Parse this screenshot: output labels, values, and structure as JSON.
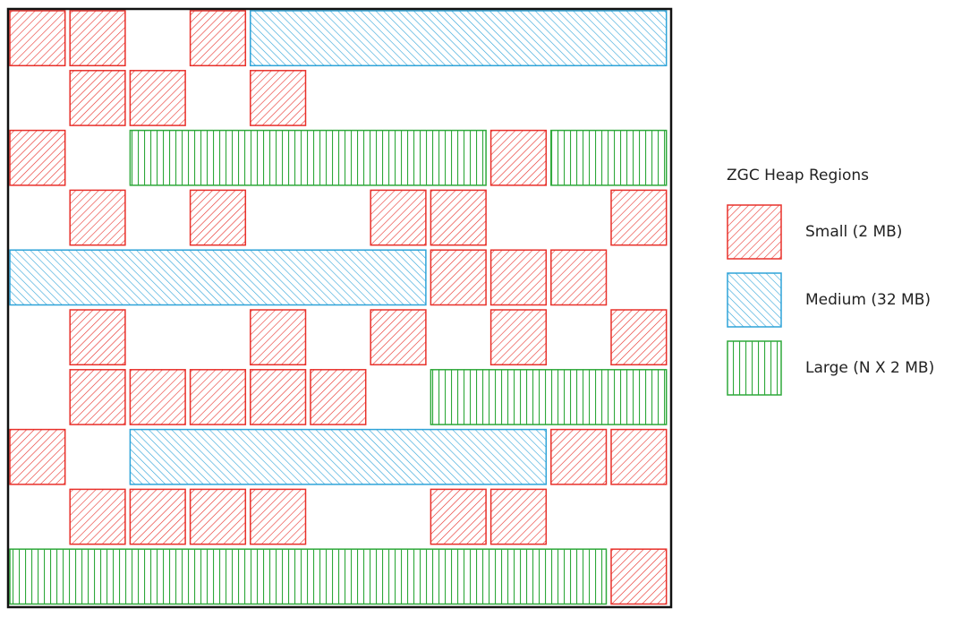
{
  "legend": {
    "title": "ZGC Heap Regions",
    "items": [
      {
        "key": "small",
        "label": "Small (2 MB)",
        "color": "#e8302a",
        "pattern": "hatch-forward"
      },
      {
        "key": "medium",
        "label": "Medium (32 MB)",
        "color": "#2ea3d8",
        "pattern": "hatch-backward"
      },
      {
        "key": "large",
        "label": "Large (N X 2 MB)",
        "color": "#2ea83a",
        "pattern": "vertical-lines"
      }
    ]
  },
  "heap": {
    "frame_color": "#111111",
    "rows": [
      [
        {
          "type": "small",
          "col": 0
        },
        {
          "type": "small",
          "col": 1
        },
        {
          "type": "small",
          "col": 3
        },
        {
          "type": "medium",
          "col": 4,
          "span": 7
        }
      ],
      [
        {
          "type": "small",
          "col": 1
        },
        {
          "type": "small",
          "col": 2
        },
        {
          "type": "small",
          "col": 4
        }
      ],
      [
        {
          "type": "small",
          "col": 0
        },
        {
          "type": "large",
          "col": 2,
          "span": 6
        },
        {
          "type": "small",
          "col": 8
        },
        {
          "type": "large",
          "col": 9,
          "span": 2
        }
      ],
      [
        {
          "type": "small",
          "col": 1
        },
        {
          "type": "small",
          "col": 3
        },
        {
          "type": "small",
          "col": 6
        },
        {
          "type": "small",
          "col": 7
        },
        {
          "type": "small",
          "col": 10
        }
      ],
      [
        {
          "type": "medium",
          "col": 0,
          "span": 7
        },
        {
          "type": "small",
          "col": 7
        },
        {
          "type": "small",
          "col": 8
        },
        {
          "type": "small",
          "col": 9
        }
      ],
      [
        {
          "type": "small",
          "col": 1
        },
        {
          "type": "small",
          "col": 4
        },
        {
          "type": "small",
          "col": 6
        },
        {
          "type": "small",
          "col": 8
        },
        {
          "type": "small",
          "col": 10
        }
      ],
      [
        {
          "type": "small",
          "col": 1
        },
        {
          "type": "small",
          "col": 2
        },
        {
          "type": "small",
          "col": 3
        },
        {
          "type": "small",
          "col": 4
        },
        {
          "type": "small",
          "col": 5
        },
        {
          "type": "large",
          "col": 7,
          "span": 4
        }
      ],
      [
        {
          "type": "small",
          "col": 0
        },
        {
          "type": "medium",
          "col": 2,
          "span": 7
        },
        {
          "type": "small",
          "col": 9
        },
        {
          "type": "small",
          "col": 10
        }
      ],
      [
        {
          "type": "small",
          "col": 1
        },
        {
          "type": "small",
          "col": 2
        },
        {
          "type": "small",
          "col": 3
        },
        {
          "type": "small",
          "col": 4
        },
        {
          "type": "small",
          "col": 7
        },
        {
          "type": "small",
          "col": 8
        }
      ],
      [
        {
          "type": "large",
          "col": 0,
          "span": 10
        },
        {
          "type": "small",
          "col": 10
        }
      ]
    ]
  }
}
